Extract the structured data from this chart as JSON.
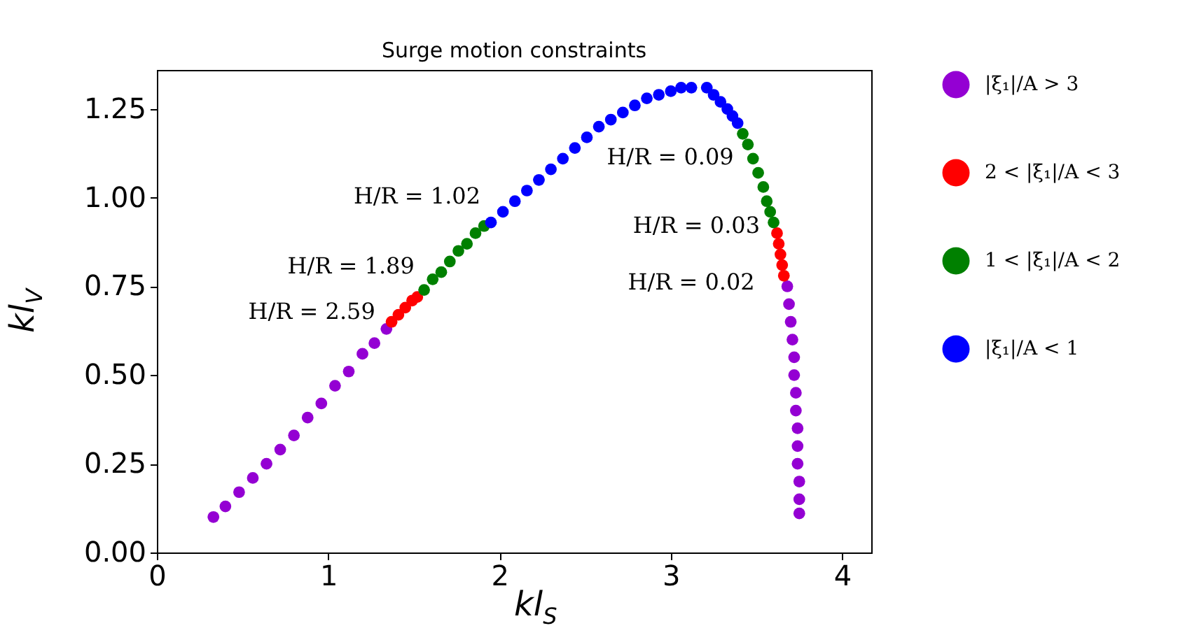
{
  "chart_data": {
    "type": "scatter",
    "title": "Surge motion constraints",
    "xlabel": "kl$_{S}$",
    "ylabel": "kl$_{V}$",
    "xlim": [
      0,
      4.17
    ],
    "xticks": [
      0,
      1,
      2,
      3,
      4
    ],
    "ylim": [
      0,
      1.36
    ],
    "yticks": [
      {
        "value": 0,
        "label": "0.00"
      },
      {
        "value": 0.25,
        "label": "0.25"
      },
      {
        "value": 0.5,
        "label": "0.50"
      },
      {
        "value": 0.75,
        "label": "0.75"
      },
      {
        "value": 1,
        "label": "1.00"
      },
      {
        "value": 1.25,
        "label": "1.25"
      }
    ],
    "grid": false,
    "legend": "right",
    "marker": "circle",
    "series": [
      {
        "name": "|ξ₁|/A > 3",
        "color": "#9400d3",
        "x": [
          0.33,
          0.4,
          0.48,
          0.56,
          0.64,
          0.72,
          0.8,
          0.88,
          0.96,
          1.04,
          1.12,
          1.2,
          1.27,
          1.34,
          3.68,
          3.69,
          3.7,
          3.71,
          3.72,
          3.72,
          3.73,
          3.73,
          3.74,
          3.74,
          3.74,
          3.75,
          3.75,
          3.75
        ],
        "values": [
          0.1,
          0.13,
          0.17,
          0.21,
          0.25,
          0.29,
          0.33,
          0.38,
          0.42,
          0.47,
          0.51,
          0.56,
          0.59,
          0.63,
          0.75,
          0.7,
          0.65,
          0.6,
          0.55,
          0.5,
          0.45,
          0.4,
          0.35,
          0.3,
          0.25,
          0.2,
          0.15,
          0.11
        ]
      },
      {
        "name": "2 < |ξ₁|/A < 3",
        "color": "#ff0000",
        "x": [
          1.37,
          1.41,
          1.45,
          1.49,
          1.52,
          3.62,
          3.63,
          3.64,
          3.65,
          3.66
        ],
        "values": [
          0.65,
          0.67,
          0.69,
          0.71,
          0.72,
          0.9,
          0.87,
          0.84,
          0.81,
          0.78
        ]
      },
      {
        "name": "1 < |ξ₁|/A < 2",
        "color": "#008000",
        "x": [
          1.56,
          1.61,
          1.66,
          1.71,
          1.76,
          1.81,
          1.86,
          1.91,
          3.42,
          3.45,
          3.48,
          3.51,
          3.54,
          3.56,
          3.58,
          3.6
        ],
        "values": [
          0.74,
          0.77,
          0.79,
          0.82,
          0.85,
          0.87,
          0.9,
          0.92,
          1.18,
          1.15,
          1.11,
          1.07,
          1.03,
          0.99,
          0.96,
          0.93
        ]
      },
      {
        "name": "|ξ₁|/A < 1",
        "color": "#0000ff",
        "x": [
          1.95,
          2.02,
          2.09,
          2.16,
          2.23,
          2.3,
          2.37,
          2.44,
          2.51,
          2.58,
          2.65,
          2.72,
          2.79,
          2.86,
          2.93,
          3.0,
          3.06,
          3.12,
          3.21,
          3.25,
          3.29,
          3.33,
          3.36,
          3.39
        ],
        "values": [
          0.93,
          0.96,
          0.99,
          1.02,
          1.05,
          1.08,
          1.11,
          1.14,
          1.17,
          1.2,
          1.22,
          1.24,
          1.26,
          1.28,
          1.29,
          1.3,
          1.31,
          1.31,
          1.31,
          1.29,
          1.27,
          1.25,
          1.23,
          1.21
        ]
      }
    ],
    "annotations": [
      {
        "text": "H/R = 2.59",
        "x": 1.34,
        "y": 0.63
      },
      {
        "text": "H/R = 1.89",
        "x": 1.52,
        "y": 0.72
      },
      {
        "text": "H/R = 1.02",
        "x": 1.93,
        "y": 0.94
      },
      {
        "text": "H/R = 0.09",
        "x": 3.4,
        "y": 1.2
      },
      {
        "text": "H/R = 0.03",
        "x": 3.61,
        "y": 0.92
      },
      {
        "text": "H/R = 0.02",
        "x": 3.67,
        "y": 0.76
      }
    ]
  }
}
